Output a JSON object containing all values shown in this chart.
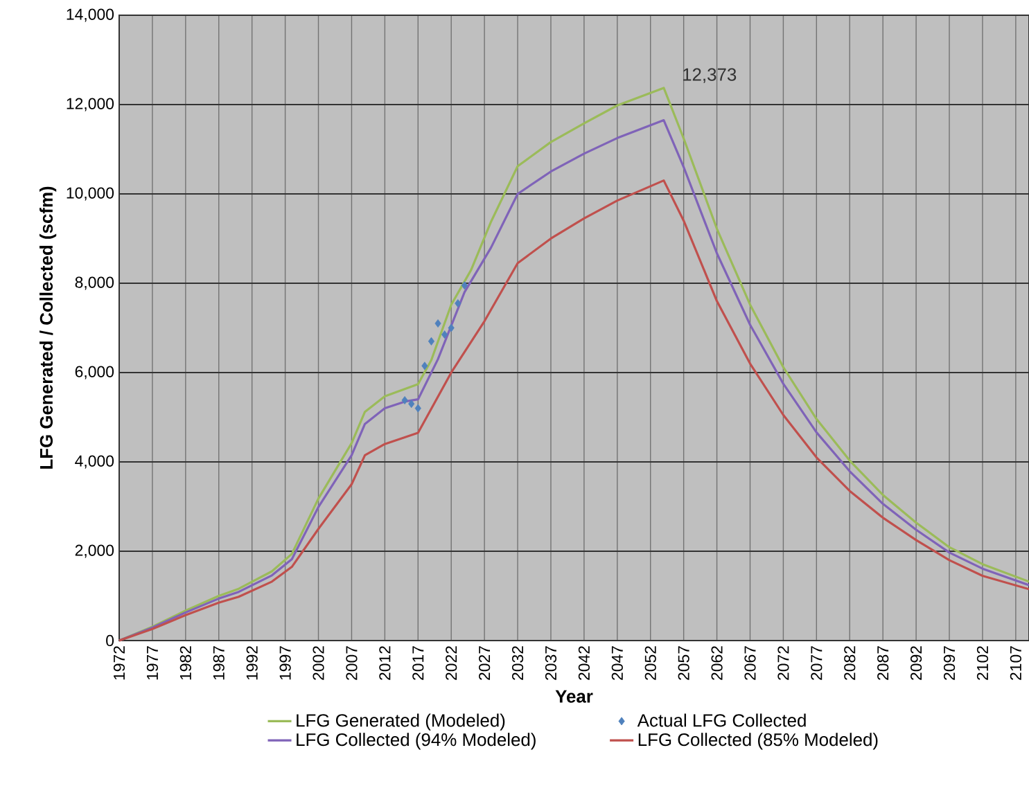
{
  "chart_data": {
    "type": "line",
    "xlabel": "Year",
    "ylabel": "LFG Generated / Collected (scfm)",
    "xlim": [
      1972,
      2109
    ],
    "xticks": [
      1972,
      1977,
      1982,
      1987,
      1992,
      1997,
      2002,
      2007,
      2012,
      2017,
      2022,
      2027,
      2032,
      2037,
      2042,
      2047,
      2052,
      2057,
      2062,
      2067,
      2072,
      2077,
      2082,
      2087,
      2092,
      2097,
      2102,
      2107
    ],
    "ylim": [
      0,
      14000
    ],
    "yticks": [
      {
        "value": 0,
        "label": "0"
      },
      {
        "value": 2000,
        "label": "2,000"
      },
      {
        "value": 4000,
        "label": "4,000"
      },
      {
        "value": 6000,
        "label": "6,000"
      },
      {
        "value": 8000,
        "label": "8,000"
      },
      {
        "value": 10000,
        "label": "10,000"
      },
      {
        "value": 12000,
        "label": "12,000"
      },
      {
        "value": 14000,
        "label": "14,000"
      }
    ],
    "grid": true,
    "legend": "bottom",
    "marker": "none",
    "annotations": [
      {
        "text": "12,373",
        "x": 2054,
        "y": 12373
      }
    ],
    "series": [
      {
        "name": "LFG Generated (Modeled)",
        "color": "#9bbb59",
        "x": [
          1972,
          1977,
          1982,
          1987,
          1990,
          1995,
          1998,
          2002,
          2007,
          2009,
          2012,
          2015,
          2017,
          2019,
          2022,
          2025,
          2028,
          2032,
          2037,
          2042,
          2047,
          2054,
          2057,
          2062,
          2067,
          2072,
          2077,
          2082,
          2087,
          2092,
          2097,
          2102,
          2109
        ],
        "values": [
          0,
          310,
          670,
          1000,
          1160,
          1550,
          1940,
          3180,
          4420,
          5120,
          5470,
          5630,
          5740,
          6280,
          7520,
          8300,
          9380,
          10620,
          11160,
          11580,
          11980,
          12373,
          11240,
          9220,
          7520,
          6120,
          4960,
          4030,
          3260,
          2640,
          2090,
          1710,
          1320
        ]
      },
      {
        "name": "Actual LFG Collected",
        "type": "scatter",
        "marker": "diamond",
        "color": "#4f81bd",
        "x": [
          2015,
          2016,
          2017,
          2018,
          2019,
          2020,
          2021,
          2022,
          2023,
          2024
        ],
        "values": [
          5380,
          5300,
          5200,
          6150,
          6700,
          7100,
          6850,
          7000,
          7550,
          7950
        ]
      },
      {
        "name": "LFG Collected (94% Modeled)",
        "color": "#7f63b8",
        "x": [
          1972,
          1977,
          1982,
          1987,
          1990,
          1995,
          1998,
          2002,
          2007,
          2009,
          2012,
          2015,
          2017,
          2020,
          2024,
          2028,
          2032,
          2037,
          2042,
          2047,
          2054,
          2057,
          2062,
          2067,
          2072,
          2077,
          2082,
          2087,
          2092,
          2097,
          2102,
          2109
        ],
        "values": [
          0,
          290,
          630,
          940,
          1090,
          1460,
          1820,
          2990,
          4150,
          4850,
          5200,
          5350,
          5400,
          6300,
          7800,
          8800,
          10000,
          10500,
          10900,
          11250,
          11650,
          10600,
          8670,
          7070,
          5750,
          4660,
          3790,
          3060,
          2480,
          1970,
          1610,
          1240
        ]
      },
      {
        "name": "LFG Collected (85% Modeled)",
        "color": "#c0504d",
        "x": [
          1972,
          1977,
          1982,
          1987,
          1990,
          1995,
          1998,
          2002,
          2007,
          2009,
          2012,
          2015,
          2017,
          2022,
          2027,
          2032,
          2037,
          2042,
          2047,
          2054,
          2057,
          2062,
          2067,
          2072,
          2077,
          2082,
          2087,
          2092,
          2097,
          2102,
          2109
        ],
        "values": [
          0,
          260,
          570,
          850,
          980,
          1320,
          1650,
          2500,
          3500,
          4150,
          4400,
          4550,
          4650,
          6000,
          7150,
          8450,
          9000,
          9450,
          9850,
          10300,
          9400,
          7600,
          6200,
          5050,
          4100,
          3350,
          2750,
          2250,
          1800,
          1450,
          1150
        ]
      }
    ]
  }
}
